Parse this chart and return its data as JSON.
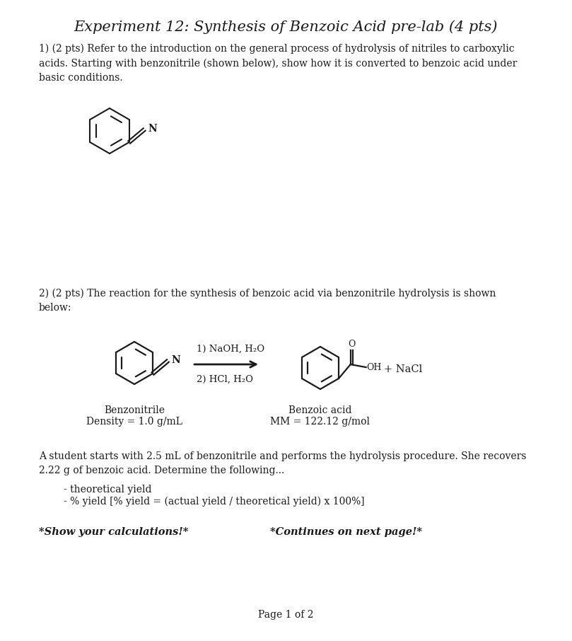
{
  "title": "Experiment 12: Synthesis of Benzoic Acid pre-lab (4 pts)",
  "bg_color": "#ffffff",
  "text_color": "#1a1a1a",
  "q1_text": "1) (2 pts) Refer to the introduction on the general process of hydrolysis of nitriles to carboxylic\nacids. Starting with benzonitrile (shown below), show how it is converted to benzoic acid under\nbasic conditions.",
  "q2_text": "2) (2 pts) The reaction for the synthesis of benzoic acid via benzonitrile hydrolysis is shown\nbelow:",
  "reagent1": "1) NaOH, H₂O",
  "reagent2": "2) HCl, H₂O",
  "nacl_text": "+ NaCl",
  "benzonitrile_label1": "Benzonitrile",
  "benzonitrile_label2": "Density = 1.0 g/mL",
  "benzoic_label1": "Benzoic acid",
  "benzoic_label2": "MM = 122.12 g/mol",
  "student_text": "A student starts with 2.5 mL of benzonitrile and performs the hydrolysis procedure. She recovers\n2.22 g of benzoic acid. Determine the following...",
  "bullet1": "- theoretical yield",
  "bullet2": "- % yield [% yield = (actual yield / theoretical yield) x 100%]",
  "show_calc": "*Show your calculations!*",
  "continues": "*Continues on next page!*",
  "page_footer": "Page 1 of 2"
}
